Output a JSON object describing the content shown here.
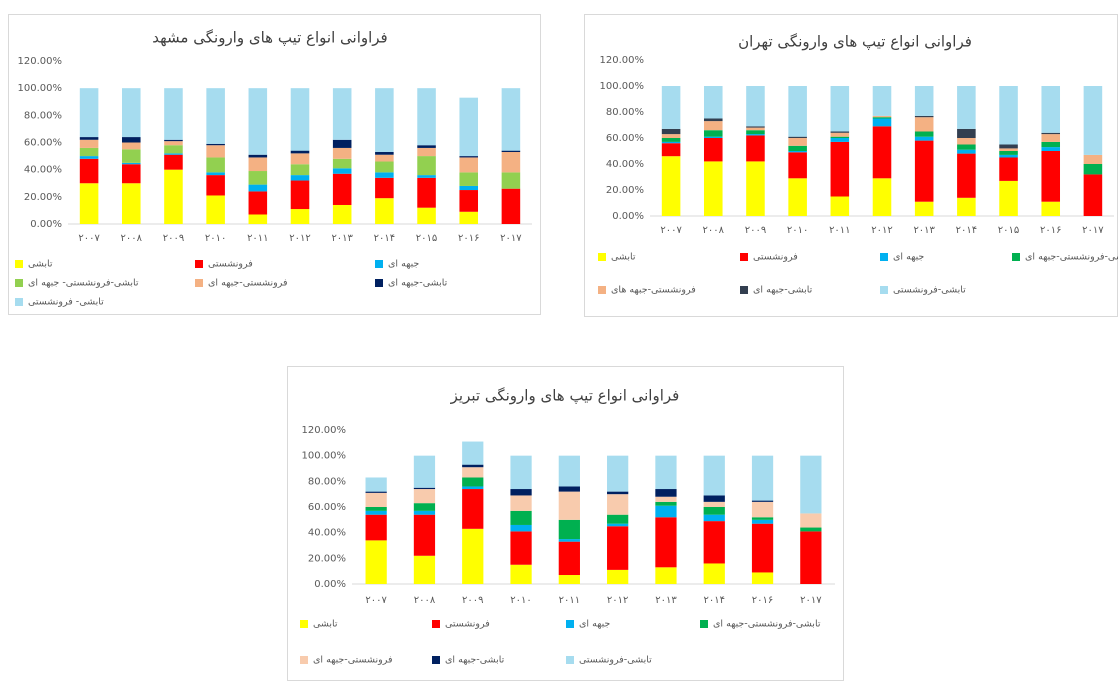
{
  "chart_data": [
    {
      "type": "bar",
      "stacked": true,
      "title": "فراوانی انواع تیپ های وارونگی مشهد",
      "categories": [
        "۲۰۰۷",
        "۲۰۰۸",
        "۲۰۰۹",
        "۲۰۱۰",
        "۲۰۱۱",
        "۲۰۱۲",
        "۲۰۱۳",
        "۲۰۱۴",
        "۲۰۱۵",
        "۲۰۱۶",
        "۲۰۱۷"
      ],
      "ylim": [
        0,
        120
      ],
      "yticks": [
        {
          "value": 0,
          "label": "0.00%"
        },
        {
          "value": 20,
          "label": "20.00%"
        },
        {
          "value": 40,
          "label": "40.00%"
        },
        {
          "value": 60,
          "label": "60.00%"
        },
        {
          "value": 80,
          "label": "80.00%"
        },
        {
          "value": 100,
          "label": "100.00%"
        },
        {
          "value": 120,
          "label": "120.00%"
        }
      ],
      "grid": false,
      "series": [
        {
          "name": "تابشی",
          "color": "#ffff00",
          "values": [
            30,
            30,
            40,
            21,
            7,
            11,
            14,
            19,
            12,
            9,
            0
          ]
        },
        {
          "name": "فرونشستی",
          "color": "#ff0000",
          "values": [
            18,
            14,
            11,
            15,
            17,
            21,
            23,
            15,
            22,
            16,
            26
          ]
        },
        {
          "name": "جبهه ای",
          "color": "#00b0f0",
          "values": [
            2,
            1,
            1,
            2,
            5,
            4,
            4,
            4,
            2,
            3,
            0
          ]
        },
        {
          "name": "تابشی-فرونشستی- جبهه ای",
          "color": "#92d050",
          "values": [
            6,
            10,
            6,
            11,
            10,
            8,
            7,
            8,
            14,
            10,
            12
          ]
        },
        {
          "name": "فرونشستی-جبهه ای",
          "color": "#f4b183",
          "values": [
            6,
            5,
            3,
            9,
            10,
            8,
            8,
            5,
            6,
            11,
            15
          ]
        },
        {
          "name": "تابشی-جبهه ای",
          "color": "#002060",
          "values": [
            2,
            4,
            1,
            1,
            2,
            2,
            6,
            2,
            2,
            1,
            1
          ]
        },
        {
          "name": "تابشی- فرونشستی",
          "color": "#a6dcef",
          "values": [
            36,
            36,
            38,
            41,
            49,
            46,
            38,
            47,
            42,
            43,
            46
          ]
        }
      ]
    },
    {
      "type": "bar",
      "stacked": true,
      "title": "فراوانی انواع تیپ های وارونگی تهران",
      "categories": [
        "۲۰۰۷",
        "۲۰۰۸",
        "۲۰۰۹",
        "۲۰۱۰",
        "۲۰۱۱",
        "۲۰۱۲",
        "۲۰۱۳",
        "۲۰۱۴",
        "۲۰۱۵",
        "۲۰۱۶",
        "۲۰۱۷"
      ],
      "ylim": [
        0,
        120
      ],
      "yticks": [
        {
          "value": 0,
          "label": "0.00%"
        },
        {
          "value": 20,
          "label": "20.00%"
        },
        {
          "value": 40,
          "label": "40.00%"
        },
        {
          "value": 60,
          "label": "60.00%"
        },
        {
          "value": 80,
          "label": "80.00%"
        },
        {
          "value": 100,
          "label": "100.00%"
        },
        {
          "value": 120,
          "label": "120.00%"
        }
      ],
      "grid": false,
      "series": [
        {
          "name": "تابشی",
          "color": "#ffff00",
          "values": [
            46,
            42,
            42,
            29,
            15,
            29,
            11,
            14,
            27,
            11,
            0
          ]
        },
        {
          "name": "فرونشستی",
          "color": "#ff0000",
          "values": [
            10,
            18,
            20,
            20,
            42,
            40,
            47,
            34,
            18,
            39,
            32
          ]
        },
        {
          "name": "جبهه ای",
          "color": "#00b0f0",
          "values": [
            1,
            1,
            1,
            1,
            3,
            6,
            3,
            3,
            2,
            3,
            0
          ]
        },
        {
          "name": "تابشی-فرونشستی-جبهه ای",
          "color": "#00b050",
          "values": [
            3,
            5,
            3,
            4,
            1,
            1,
            4,
            4,
            3,
            4,
            8
          ]
        },
        {
          "name": "فرونشستی-جبهه های",
          "color": "#f4b183",
          "values": [
            3,
            7,
            2,
            6,
            3,
            1,
            11,
            5,
            2,
            6,
            7
          ]
        },
        {
          "name": "تابشی-جبهه ای",
          "color": "#333f50",
          "values": [
            4,
            2,
            1,
            1,
            1,
            0,
            1,
            7,
            3,
            1,
            0
          ]
        },
        {
          "name": "تابشی-فرونشستی",
          "color": "#a6dcef",
          "values": [
            33,
            25,
            31,
            39,
            35,
            23,
            23,
            33,
            45,
            36,
            53
          ]
        }
      ]
    },
    {
      "type": "bar",
      "stacked": true,
      "title": "فراوانی انواع تیپ های وارونگی تبریز",
      "categories": [
        "۲۰۰۷",
        "۲۰۰۸",
        "۲۰۰۹",
        "۲۰۱۰",
        "۲۰۱۱",
        "۲۰۱۲",
        "۲۰۱۳",
        "۲۰۱۴",
        "۲۰۱۶",
        "۲۰۱۷"
      ],
      "ylim": [
        0,
        120
      ],
      "yticks": [
        {
          "value": 0,
          "label": "0.00%"
        },
        {
          "value": 20,
          "label": "20.00%"
        },
        {
          "value": 40,
          "label": "40.00%"
        },
        {
          "value": 60,
          "label": "60.00%"
        },
        {
          "value": 80,
          "label": "80.00%"
        },
        {
          "value": 100,
          "label": "100.00%"
        },
        {
          "value": 120,
          "label": "120.00%"
        }
      ],
      "grid": false,
      "series": [
        {
          "name": "تابشی",
          "color": "#ffff00",
          "values": [
            34,
            22,
            43,
            15,
            7,
            11,
            13,
            16,
            9,
            0
          ]
        },
        {
          "name": "فرونشستی",
          "color": "#ff0000",
          "values": [
            20,
            32,
            31,
            26,
            26,
            34,
            39,
            33,
            38,
            41
          ]
        },
        {
          "name": "جبهه ای",
          "color": "#00b0f0",
          "values": [
            3,
            3,
            2,
            5,
            2,
            2,
            9,
            5,
            3,
            0
          ]
        },
        {
          "name": "تابشی-فرونشستی-جبهه ای",
          "color": "#00b050",
          "values": [
            3,
            6,
            7,
            11,
            15,
            7,
            3,
            6,
            2,
            3
          ]
        },
        {
          "name": "فرونشستی-جبهه ای",
          "color": "#f8cbad",
          "values": [
            11,
            11,
            8,
            12,
            22,
            16,
            4,
            4,
            12,
            11
          ]
        },
        {
          "name": "تابشی-جبهه ای",
          "color": "#002060",
          "values": [
            1,
            1,
            2,
            5,
            4,
            2,
            6,
            5,
            1,
            0
          ]
        },
        {
          "name": "تابشی-فرونشستی",
          "color": "#a6dcef",
          "values": [
            11,
            25,
            18,
            26,
            24,
            28,
            26,
            31,
            35,
            45
          ]
        }
      ]
    }
  ]
}
